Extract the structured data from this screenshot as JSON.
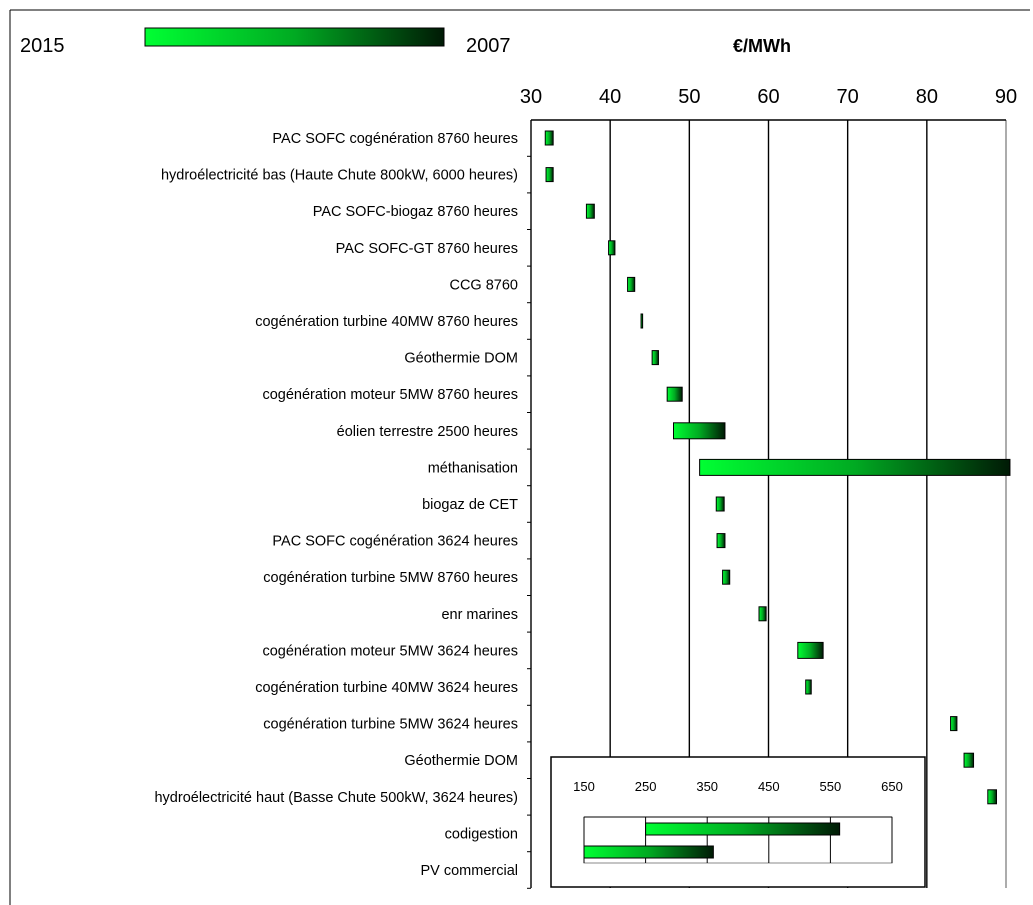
{
  "legend": {
    "left_label": "2015",
    "right_label": "2007"
  },
  "chart_data": {
    "type": "bar",
    "subtype": "floating-range-horizontal",
    "unit": "€/MWh",
    "xlim": [
      30,
      90
    ],
    "x_ticks": [
      "30",
      "40",
      "50",
      "60",
      "70",
      "80",
      "90"
    ],
    "grid": true,
    "colors": {
      "start": "#00ff33",
      "end": "#001a05"
    },
    "categories": [
      "PAC SOFC cogénération 8760 heures",
      "hydroélectricité bas (Haute Chute 800kW, 6000 heures)",
      "PAC SOFC-biogaz 8760 heures",
      "PAC SOFC-GT 8760 heures",
      "CCG 8760",
      "cogénération turbine 40MW 8760 heures",
      "Géothermie DOM",
      "cogénération moteur 5MW 8760 heures",
      "éolien terrestre 2500 heures",
      "méthanisation",
      "biogaz de CET",
      "PAC SOFC cogénération 3624 heures",
      "cogénération turbine 5MW 8760 heures",
      "enr marines",
      "cogénération moteur 5MW 3624 heures",
      "cogénération turbine 40MW 3624 heures",
      "cogénération turbine 5MW 3624 heures",
      "Géothermie DOM",
      "hydroélectricité haut (Basse Chute 500kW, 3624 heures)",
      "codigestion",
      "PV commercial"
    ],
    "ranges": [
      [
        31.8,
        32.8
      ],
      [
        31.9,
        32.8
      ],
      [
        37.0,
        38.0
      ],
      [
        39.8,
        40.6
      ],
      [
        42.2,
        43.1
      ],
      [
        43.9,
        44.1
      ],
      [
        45.3,
        46.1
      ],
      [
        47.2,
        49.1
      ],
      [
        48.0,
        54.5
      ],
      [
        51.3,
        90.5
      ],
      [
        53.4,
        54.4
      ],
      [
        53.5,
        54.5
      ],
      [
        54.2,
        55.1
      ],
      [
        58.8,
        59.7
      ],
      [
        63.7,
        66.9
      ],
      [
        64.7,
        65.4
      ],
      [
        83.0,
        83.8
      ],
      [
        84.7,
        85.9
      ],
      [
        87.7,
        88.8
      ],
      null,
      null
    ],
    "inset": {
      "xlim": [
        150,
        650
      ],
      "x_ticks": [
        "150",
        "250",
        "350",
        "450",
        "550",
        "650"
      ],
      "ranges": [
        [
          250,
          565
        ],
        [
          150,
          360
        ]
      ]
    }
  }
}
